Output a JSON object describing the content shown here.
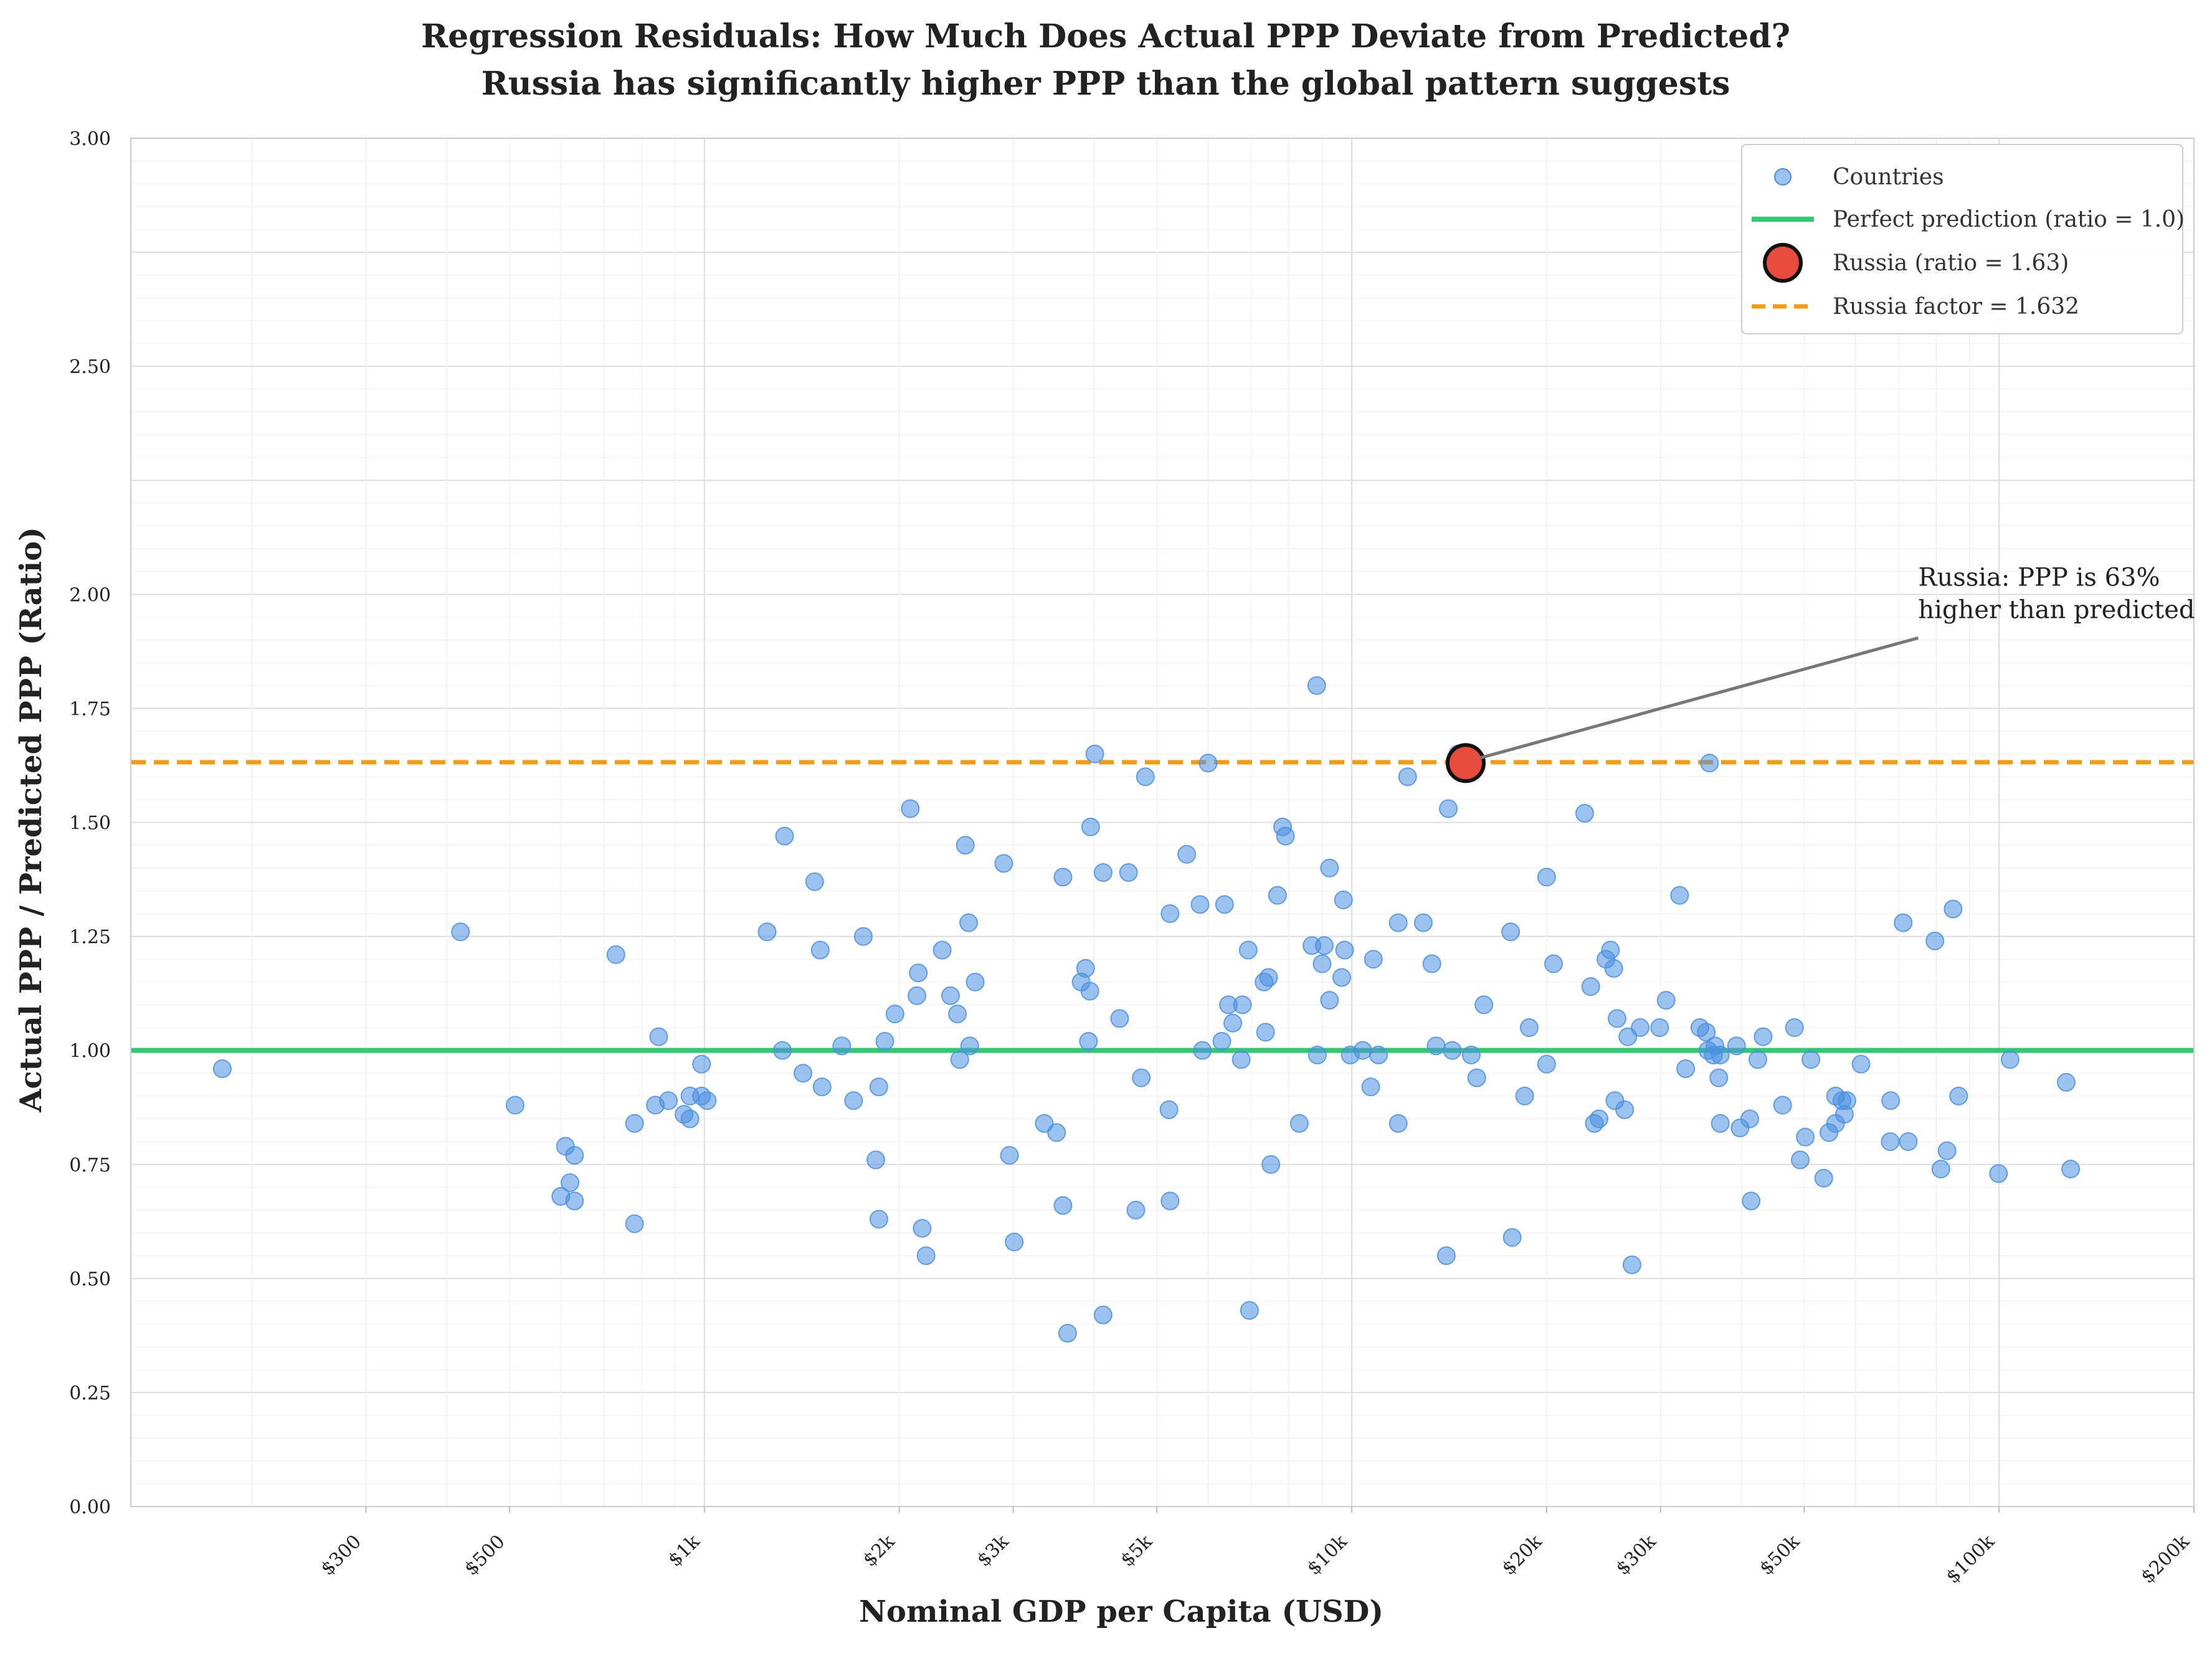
{
  "chart_data": {
    "type": "scatter",
    "title": "Regression Residuals: How Much Does Actual PPP Deviate from Predicted?",
    "subtitle": "Russia has significantly higher PPP than the global pattern suggests",
    "xlabel": "Nominal GDP per Capita (USD)",
    "ylabel": "Actual PPP / Predicted PPP (Ratio)",
    "x_scale": "log",
    "xlim": [
      130,
      200000
    ],
    "ylim": [
      0,
      3
    ],
    "grid": true,
    "legend_position": "top-right",
    "x_ticks": [
      {
        "value": 300,
        "label": "$300"
      },
      {
        "value": 500,
        "label": "$500"
      },
      {
        "value": 1000,
        "label": "$1k"
      },
      {
        "value": 2000,
        "label": "$2k"
      },
      {
        "value": 3000,
        "label": "$3k"
      },
      {
        "value": 5000,
        "label": "$5k"
      },
      {
        "value": 10000,
        "label": "$10k"
      },
      {
        "value": 20000,
        "label": "$20k"
      },
      {
        "value": 30000,
        "label": "$30k"
      },
      {
        "value": 50000,
        "label": "$50k"
      },
      {
        "value": 100000,
        "label": "$100k"
      },
      {
        "value": 200000,
        "label": "$200k"
      }
    ],
    "y_ticks": [
      {
        "value": 0,
        "label": "0.00"
      },
      {
        "value": 0.25,
        "label": "0.25"
      },
      {
        "value": 0.5,
        "label": "0.50"
      },
      {
        "value": 0.75,
        "label": "0.75"
      },
      {
        "value": 1.0,
        "label": "1.00"
      },
      {
        "value": 1.25,
        "label": "1.25"
      },
      {
        "value": 1.5,
        "label": "1.50"
      },
      {
        "value": 1.75,
        "label": "1.75"
      },
      {
        "value": 2.0,
        "label": "2.00"
      },
      {
        "value": 2.5,
        "label": "2.50"
      },
      {
        "value": 3.0,
        "label": "3.00"
      }
    ],
    "legend": [
      {
        "label": "Countries",
        "type": "marker"
      },
      {
        "label": "Perfect prediction (ratio = 1.0)",
        "type": "line"
      },
      {
        "label": "Russia (ratio = 1.63)",
        "type": "big-marker"
      },
      {
        "label": "Russia factor = 1.632",
        "type": "dashed-line"
      }
    ],
    "reference_line_value": 1.0,
    "russia_factor": 1.632,
    "russia": {
      "x": 15000,
      "y": 1.63
    },
    "annotation": {
      "lines": [
        "Russia: PPP is 63%",
        "higher than predicted"
      ],
      "x": 75000,
      "y": 2.0
    },
    "colors": {
      "countries": "#4a90e2",
      "perfect_line": "#2ecc71",
      "russia": "#e74c3c",
      "russia_factor": "#f39c12",
      "arrow": "#777777",
      "grid": "#e2e2e2"
    },
    "series": [
      {
        "name": "Countries",
        "points": [
          [
            180,
            0.96
          ],
          [
            420,
            1.26
          ],
          [
            510,
            0.88
          ],
          [
            610,
            0.79
          ],
          [
            600,
            0.68
          ],
          [
            620,
            0.71
          ],
          [
            630,
            0.67
          ],
          [
            630,
            0.77
          ],
          [
            730,
            1.21
          ],
          [
            780,
            0.84
          ],
          [
            780,
            0.62
          ],
          [
            850,
            1.03
          ],
          [
            840,
            0.88
          ],
          [
            880,
            0.89
          ],
          [
            930,
            0.86
          ],
          [
            950,
            0.9
          ],
          [
            950,
            0.85
          ],
          [
            990,
            0.9
          ],
          [
            1010,
            0.89
          ],
          [
            990,
            0.97
          ],
          [
            1250,
            1.26
          ],
          [
            1320,
            1.0
          ],
          [
            1330,
            1.47
          ],
          [
            1420,
            0.95
          ],
          [
            1480,
            1.37
          ],
          [
            1510,
            1.22
          ],
          [
            1520,
            0.92
          ],
          [
            1630,
            1.01
          ],
          [
            1700,
            0.89
          ],
          [
            1760,
            1.25
          ],
          [
            1840,
            0.76
          ],
          [
            1860,
            0.63
          ],
          [
            1860,
            0.92
          ],
          [
            1900,
            1.02
          ],
          [
            1970,
            1.08
          ],
          [
            2080,
            1.53
          ],
          [
            2130,
            1.12
          ],
          [
            2140,
            1.17
          ],
          [
            2170,
            0.61
          ],
          [
            2200,
            0.55
          ],
          [
            2330,
            1.22
          ],
          [
            2400,
            1.12
          ],
          [
            2460,
            1.08
          ],
          [
            2480,
            0.98
          ],
          [
            2530,
            1.45
          ],
          [
            2560,
            1.28
          ],
          [
            2570,
            1.01
          ],
          [
            2620,
            1.15
          ],
          [
            2900,
            1.41
          ],
          [
            2960,
            0.77
          ],
          [
            3010,
            0.58
          ],
          [
            3350,
            0.84
          ],
          [
            3500,
            0.82
          ],
          [
            3580,
            0.66
          ],
          [
            3580,
            1.38
          ],
          [
            3640,
            0.38
          ],
          [
            3820,
            1.15
          ],
          [
            3880,
            1.18
          ],
          [
            3920,
            1.02
          ],
          [
            3940,
            1.13
          ],
          [
            3950,
            1.49
          ],
          [
            4010,
            1.65
          ],
          [
            4130,
            1.39
          ],
          [
            4130,
            0.42
          ],
          [
            4380,
            1.07
          ],
          [
            4520,
            1.39
          ],
          [
            4640,
            0.65
          ],
          [
            4730,
            0.94
          ],
          [
            4800,
            1.6
          ],
          [
            5220,
            0.87
          ],
          [
            5240,
            0.67
          ],
          [
            5240,
            1.3
          ],
          [
            5560,
            1.43
          ],
          [
            5830,
            1.32
          ],
          [
            5880,
            1.0
          ],
          [
            6000,
            1.63
          ],
          [
            6300,
            1.02
          ],
          [
            6360,
            1.32
          ],
          [
            6450,
            1.1
          ],
          [
            6550,
            1.06
          ],
          [
            6750,
            0.98
          ],
          [
            6780,
            1.1
          ],
          [
            6920,
            1.22
          ],
          [
            6950,
            0.43
          ],
          [
            7320,
            1.15
          ],
          [
            7360,
            1.04
          ],
          [
            7440,
            1.16
          ],
          [
            7500,
            0.75
          ],
          [
            7680,
            1.34
          ],
          [
            7820,
            1.49
          ],
          [
            7900,
            1.47
          ],
          [
            8300,
            0.84
          ],
          [
            8680,
            1.23
          ],
          [
            8830,
            1.8
          ],
          [
            8850,
            0.99
          ],
          [
            9000,
            1.19
          ],
          [
            9070,
            1.23
          ],
          [
            9240,
            1.11
          ],
          [
            9240,
            1.4
          ],
          [
            9650,
            1.16
          ],
          [
            9710,
            1.33
          ],
          [
            9750,
            1.22
          ],
          [
            9950,
            0.99
          ],
          [
            10400,
            1.0
          ],
          [
            10700,
            0.92
          ],
          [
            10800,
            1.2
          ],
          [
            11000,
            0.99
          ],
          [
            11800,
            1.28
          ],
          [
            11800,
            0.84
          ],
          [
            12200,
            1.6
          ],
          [
            12900,
            1.28
          ],
          [
            13300,
            1.19
          ],
          [
            13500,
            1.01
          ],
          [
            14000,
            0.55
          ],
          [
            14100,
            1.53
          ],
          [
            14300,
            1.0
          ],
          [
            14600,
            1.65
          ],
          [
            15300,
            0.99
          ],
          [
            15600,
            0.94
          ],
          [
            16000,
            1.1
          ],
          [
            17600,
            1.26
          ],
          [
            17700,
            0.59
          ],
          [
            18500,
            0.9
          ],
          [
            18800,
            1.05
          ],
          [
            20000,
            0.97
          ],
          [
            20000,
            1.38
          ],
          [
            20500,
            1.19
          ],
          [
            22900,
            1.52
          ],
          [
            23400,
            1.14
          ],
          [
            23700,
            0.84
          ],
          [
            24100,
            0.85
          ],
          [
            24700,
            1.2
          ],
          [
            25100,
            1.22
          ],
          [
            25400,
            1.18
          ],
          [
            25500,
            0.89
          ],
          [
            25700,
            1.07
          ],
          [
            26400,
            0.87
          ],
          [
            26700,
            1.03
          ],
          [
            27100,
            0.53
          ],
          [
            27900,
            1.05
          ],
          [
            29900,
            1.05
          ],
          [
            30600,
            1.11
          ],
          [
            32100,
            1.34
          ],
          [
            32800,
            0.96
          ],
          [
            34500,
            1.05
          ],
          [
            35300,
            1.04
          ],
          [
            35500,
            1.0
          ],
          [
            35700,
            1.63
          ],
          [
            36200,
            0.99
          ],
          [
            36400,
            1.01
          ],
          [
            36900,
            0.94
          ],
          [
            37100,
            0.84
          ],
          [
            37100,
            0.99
          ],
          [
            39300,
            1.01
          ],
          [
            39800,
            0.83
          ],
          [
            41200,
            0.85
          ],
          [
            41400,
            0.67
          ],
          [
            42400,
            0.98
          ],
          [
            43200,
            1.03
          ],
          [
            46300,
            0.88
          ],
          [
            48300,
            1.05
          ],
          [
            49300,
            0.76
          ],
          [
            50200,
            0.81
          ],
          [
            51200,
            0.98
          ],
          [
            53600,
            0.72
          ],
          [
            54600,
            0.82
          ],
          [
            55900,
            0.84
          ],
          [
            55900,
            0.9
          ],
          [
            57200,
            0.89
          ],
          [
            57700,
            0.86
          ],
          [
            58200,
            0.89
          ],
          [
            61200,
            0.97
          ],
          [
            67900,
            0.8
          ],
          [
            68000,
            0.89
          ],
          [
            71100,
            1.28
          ],
          [
            72400,
            0.8
          ],
          [
            79600,
            1.24
          ],
          [
            81300,
            0.74
          ],
          [
            83100,
            0.78
          ],
          [
            84900,
            1.31
          ],
          [
            86600,
            0.9
          ],
          [
            99800,
            0.73
          ],
          [
            104000,
            0.98
          ],
          [
            127000,
            0.93
          ],
          [
            129000,
            0.74
          ]
        ]
      }
    ]
  }
}
